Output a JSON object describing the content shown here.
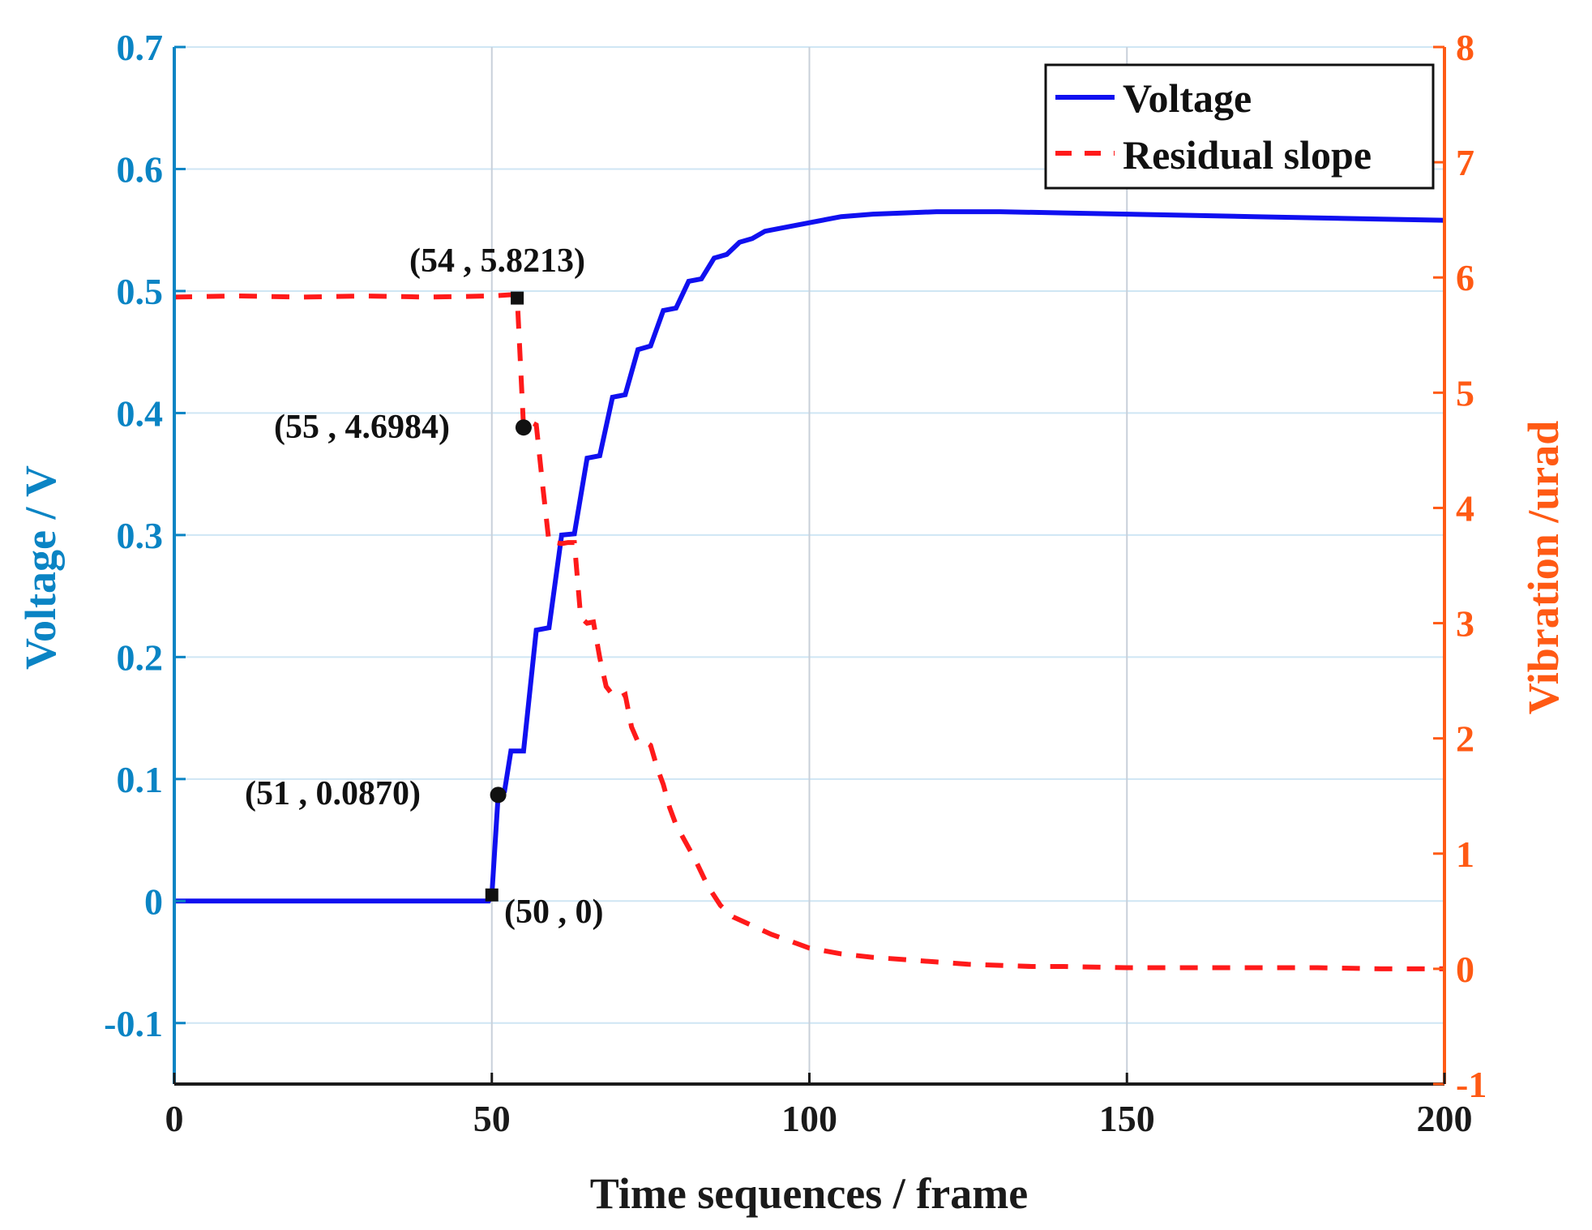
{
  "chart_data": {
    "type": "line",
    "title": "",
    "xlabel": "Time sequences / frame",
    "ylabel_left": "Voltage / V",
    "ylabel_right": "Vibration /urad",
    "xlim": [
      0,
      200
    ],
    "ylim_left": [
      -0.15,
      0.7
    ],
    "ylim_right": [
      -1,
      8
    ],
    "x_ticks": [
      "0",
      "50",
      "100",
      "150",
      "200"
    ],
    "y_left_ticks": [
      "-0.1",
      "0",
      "0.1",
      "0.2",
      "0.3",
      "0.4",
      "0.5",
      "0.6",
      "0.7"
    ],
    "y_right_ticks": [
      "-1",
      "0",
      "1",
      "2",
      "3",
      "4",
      "5",
      "6",
      "7",
      "8"
    ],
    "grid": true,
    "legend_position": "top-right",
    "colors": {
      "voltage": "#1010f0",
      "residual": "#ff1a1a",
      "left_axis": "#0a84c4",
      "right_axis": "#ff5a14"
    },
    "series": [
      {
        "name": "Voltage",
        "axis": "left",
        "style": "solid",
        "x": [
          0,
          49.5,
          50,
          51,
          52,
          53,
          55,
          57,
          59,
          61,
          63,
          65,
          67,
          69,
          71,
          73,
          75,
          77,
          79,
          81,
          83,
          85,
          87,
          89,
          91,
          93,
          95,
          97,
          100,
          105,
          110,
          115,
          120,
          125,
          130,
          140,
          150,
          160,
          170,
          180,
          190,
          200
        ],
        "values": [
          0,
          0,
          0.005,
          0.087,
          0.09,
          0.123,
          0.123,
          0.222,
          0.224,
          0.3,
          0.301,
          0.363,
          0.365,
          0.413,
          0.415,
          0.452,
          0.455,
          0.484,
          0.486,
          0.508,
          0.51,
          0.527,
          0.53,
          0.54,
          0.543,
          0.549,
          0.551,
          0.553,
          0.556,
          0.561,
          0.563,
          0.564,
          0.565,
          0.565,
          0.565,
          0.564,
          0.563,
          0.562,
          0.561,
          0.56,
          0.559,
          0.558
        ]
      },
      {
        "name": "Residual slope",
        "axis": "right",
        "style": "dashed",
        "x": [
          0,
          10,
          20,
          30,
          40,
          50,
          53,
          54,
          55,
          56,
          57,
          58,
          59,
          60,
          61,
          62,
          63,
          64,
          65,
          66,
          67,
          68,
          69,
          70,
          71,
          72,
          73,
          74,
          75,
          76,
          77,
          78,
          79,
          80,
          82,
          84,
          86,
          88,
          90,
          92,
          94,
          96,
          98,
          100,
          105,
          110,
          115,
          120,
          125,
          130,
          135,
          140,
          150,
          160,
          170,
          180,
          190,
          200
        ],
        "values": [
          5.83,
          5.84,
          5.83,
          5.84,
          5.83,
          5.84,
          5.85,
          5.8213,
          4.6984,
          4.75,
          4.72,
          4.2,
          3.7,
          3.7,
          3.69,
          3.7,
          3.7,
          3.05,
          3.0,
          3.01,
          2.7,
          2.45,
          2.38,
          2.35,
          2.38,
          2.1,
          1.97,
          1.98,
          1.94,
          1.75,
          1.6,
          1.4,
          1.25,
          1.15,
          0.95,
          0.72,
          0.55,
          0.45,
          0.4,
          0.35,
          0.3,
          0.26,
          0.22,
          0.18,
          0.13,
          0.1,
          0.08,
          0.06,
          0.04,
          0.03,
          0.02,
          0.02,
          0.01,
          0.01,
          0.01,
          0.01,
          0.0,
          0.0
        ]
      }
    ],
    "annotations": [
      {
        "label": "(50 , 0)",
        "x": 50,
        "y": 0.005,
        "axis": "left",
        "marker": "square"
      },
      {
        "label": "(51 , 0.0870)",
        "x": 51,
        "y": 0.087,
        "axis": "left",
        "marker": "circle"
      },
      {
        "label": "(54 , 5.8213)",
        "x": 54,
        "y": 5.8213,
        "axis": "right",
        "marker": "square"
      },
      {
        "label": "(55 , 4.6984)",
        "x": 55,
        "y": 4.6984,
        "axis": "right",
        "marker": "circle"
      }
    ]
  }
}
